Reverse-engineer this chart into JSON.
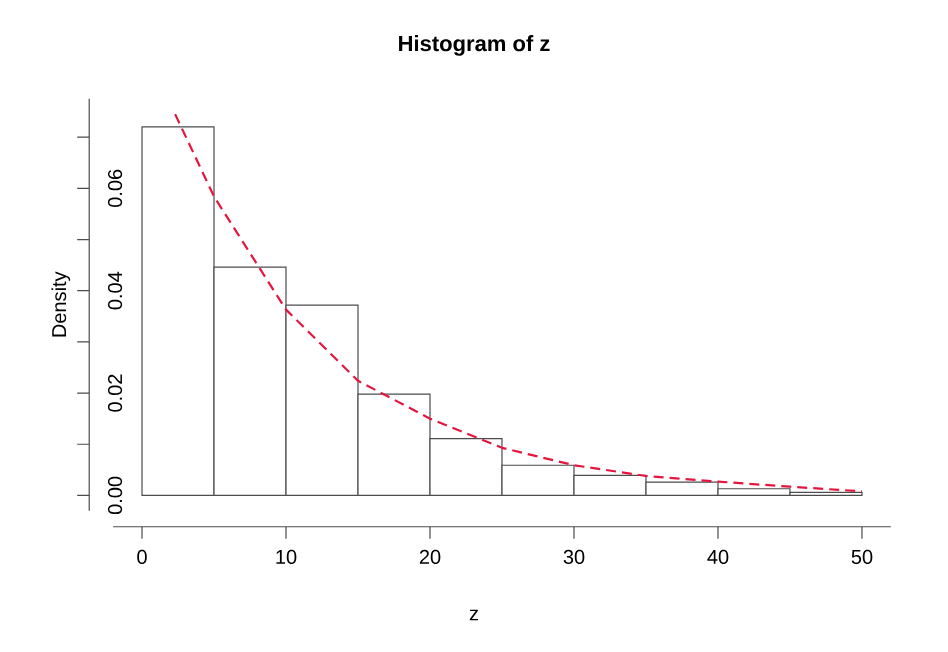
{
  "chart_data": {
    "type": "histogram",
    "title": "Histogram of z",
    "xlabel": "z",
    "ylabel": "Density",
    "xlim": [
      -2,
      52
    ],
    "ylim": [
      -0.003,
      0.0775
    ],
    "xticks": [
      0,
      10,
      20,
      30,
      40,
      50
    ],
    "yticks": [
      {
        "value": 0,
        "label": "0.00"
      },
      {
        "value": 0.01,
        "label": null
      },
      0.02,
      {
        "value": 0.03,
        "label": null
      },
      0.04,
      {
        "value": 0.05,
        "label": null
      },
      0.06,
      {
        "value": 0.07,
        "label": null
      }
    ],
    "series": [
      {
        "color": "#ffffff",
        "bins": [
          0,
          5,
          10,
          15,
          20,
          25,
          30,
          35,
          40,
          45,
          50
        ],
        "values": [
          0.072,
          0.0446,
          0.0372,
          0.0198,
          0.0111,
          0.0059,
          0.0039,
          0.0026,
          0.0013,
          0.0006
        ]
      },
      {
        "type": "line",
        "color": "#e3173e",
        "line_style": "dashed",
        "x": [
          2.3,
          5,
          10,
          15,
          20,
          25,
          30,
          35,
          40,
          45,
          50
        ],
        "values": [
          0.0745,
          0.0584,
          0.0363,
          0.0224,
          0.015,
          0.0093,
          0.0059,
          0.0038,
          0.0027,
          0.0017,
          0.0008
        ]
      }
    ]
  }
}
